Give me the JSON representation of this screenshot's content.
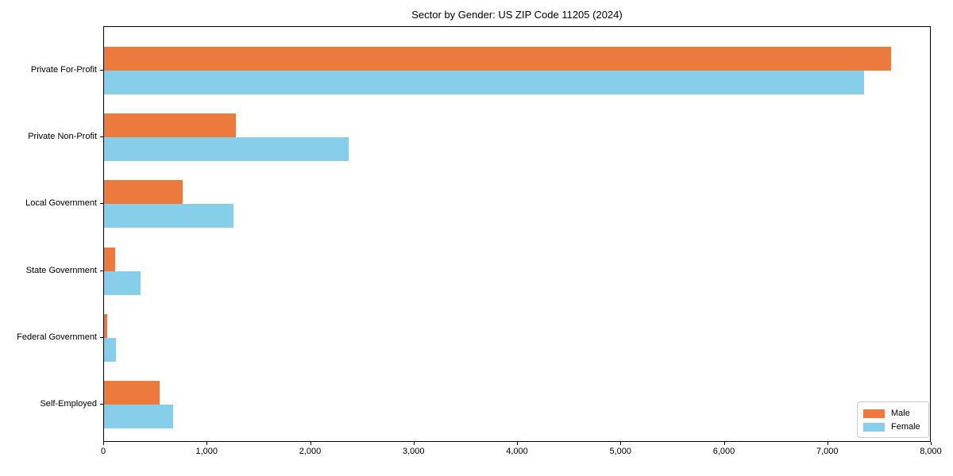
{
  "title": "Sector by Gender: US ZIP Code 11205 (2024)",
  "colors": {
    "male": "#EC7A3D",
    "female": "#87CEEB",
    "axis": "#000000",
    "legend_border": "#cccccc",
    "background": "#ffffff"
  },
  "legend": {
    "position": "lower right",
    "items": [
      {
        "label": "Male",
        "color": "#EC7A3D"
      },
      {
        "label": "Female",
        "color": "#87CEEB"
      }
    ]
  },
  "chart_data": {
    "type": "bar",
    "orientation": "horizontal",
    "title": "Sector by Gender: US ZIP Code 11205 (2024)",
    "xlabel": "",
    "ylabel": "",
    "categories": [
      "Private For-Profit",
      "Private Non-Profit",
      "Local Government",
      "State Government",
      "Federal Government",
      "Self-Employed"
    ],
    "series": [
      {
        "name": "Male",
        "color": "#EC7A3D",
        "values": [
          7620,
          1280,
          760,
          110,
          30,
          540
        ]
      },
      {
        "name": "Female",
        "color": "#87CEEB",
        "values": [
          7360,
          2370,
          1250,
          350,
          115,
          670
        ]
      }
    ],
    "xlim": [
      0,
      8000
    ],
    "xticks": [
      0,
      1000,
      2000,
      3000,
      4000,
      5000,
      6000,
      7000,
      8000
    ],
    "xtick_labels": [
      "0",
      "1,000",
      "2,000",
      "3,000",
      "4,000",
      "5,000",
      "6,000",
      "7,000",
      "8,000"
    ],
    "grid": false,
    "legend_position": "lower right"
  }
}
